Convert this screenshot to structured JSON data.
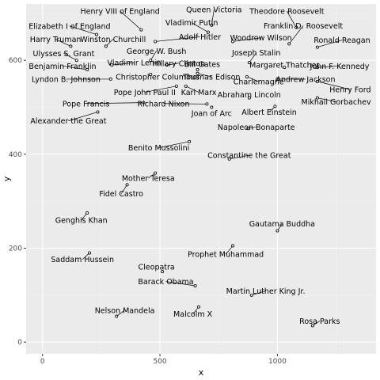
{
  "chart_data": {
    "type": "scatter",
    "title": "",
    "xlabel": "x",
    "ylabel": "y",
    "xlim": [
      -70,
      1420
    ],
    "ylim": [
      -25,
      720
    ],
    "x_ticks": [
      0,
      500,
      1000
    ],
    "y_ticks": [
      0,
      200,
      400,
      600
    ],
    "grid": true,
    "legend": "none",
    "colors": {
      "panel": "#ebebeb",
      "grid_major": "#ffffff",
      "grid_minor": "#f2f2f2",
      "point": "#000000"
    },
    "points": [
      {
        "label": "Henry VIII of England",
        "x": 420,
        "y": 665,
        "lx": 330,
        "ly": 705
      },
      {
        "label": "Queen Victoria",
        "x": 720,
        "y": 675,
        "lx": 730,
        "ly": 708
      },
      {
        "label": "Theodore Roosevelt",
        "x": 1080,
        "y": 670,
        "lx": 1040,
        "ly": 705
      },
      {
        "label": "Vladimir Putin",
        "x": 705,
        "y": 660,
        "lx": 635,
        "ly": 680
      },
      {
        "label": "Elizabeth I of England",
        "x": 230,
        "y": 655,
        "lx": 115,
        "ly": 673
      },
      {
        "label": "Franklin D. Roosevelt",
        "x": 1050,
        "y": 635,
        "lx": 1110,
        "ly": 674
      },
      {
        "label": "Harry Truman",
        "x": 120,
        "y": 630,
        "lx": 55,
        "ly": 645
      },
      {
        "label": "Winston Churchill",
        "x": 270,
        "y": 630,
        "lx": 300,
        "ly": 645
      },
      {
        "label": "Adolf Hitler",
        "x": 480,
        "y": 640,
        "lx": 670,
        "ly": 650
      },
      {
        "label": "Woodrow Wilson",
        "x": 810,
        "y": 640,
        "lx": 930,
        "ly": 648
      },
      {
        "label": "Ronald Reagan",
        "x": 1170,
        "y": 628,
        "lx": 1275,
        "ly": 643
      },
      {
        "label": "George W. Bush",
        "x": 460,
        "y": 600,
        "lx": 485,
        "ly": 620
      },
      {
        "label": "Joseph Stalin",
        "x": 880,
        "y": 595,
        "lx": 910,
        "ly": 616
      },
      {
        "label": "Ulysses S. Grant",
        "x": 145,
        "y": 600,
        "lx": 90,
        "ly": 615
      },
      {
        "label": "Vladimir Lenin",
        "x": 295,
        "y": 590,
        "lx": 390,
        "ly": 595
      },
      {
        "label": "Hillary Clinton",
        "x": 530,
        "y": 590,
        "lx": 580,
        "ly": 594
      },
      {
        "label": "Bill Gates",
        "x": 660,
        "y": 580,
        "lx": 680,
        "ly": 592
      },
      {
        "label": "Margaret Thatcher",
        "x": 1030,
        "y": 585,
        "lx": 1030,
        "ly": 590
      },
      {
        "label": "John F. Kennedy",
        "x": 1170,
        "y": 585,
        "lx": 1265,
        "ly": 588
      },
      {
        "label": "Benjamin Franklin",
        "x": 190,
        "y": 580,
        "lx": 85,
        "ly": 588
      },
      {
        "label": "Christopher Columbus",
        "x": 460,
        "y": 570,
        "lx": 490,
        "ly": 565
      },
      {
        "label": "Thomas Edison",
        "x": 660,
        "y": 572,
        "lx": 720,
        "ly": 565
      },
      {
        "label": "Charlemagne",
        "x": 870,
        "y": 565,
        "lx": 920,
        "ly": 555
      },
      {
        "label": "Andrew Jackson",
        "x": 1000,
        "y": 560,
        "lx": 1120,
        "ly": 560
      },
      {
        "label": "Lyndon B. Johnson",
        "x": 290,
        "y": 560,
        "lx": 100,
        "ly": 560
      },
      {
        "label": "Henry Ford",
        "x": 1170,
        "y": 555,
        "lx": 1310,
        "ly": 538
      },
      {
        "label": "Pope John Paul II",
        "x": 570,
        "y": 545,
        "lx": 435,
        "ly": 532
      },
      {
        "label": "Karl Marx",
        "x": 610,
        "y": 545,
        "lx": 665,
        "ly": 532
      },
      {
        "label": "Abraham Lincoln",
        "x": 880,
        "y": 520,
        "lx": 880,
        "ly": 527
      },
      {
        "label": "Mikhail Gorbachev",
        "x": 1170,
        "y": 520,
        "lx": 1250,
        "ly": 512
      },
      {
        "label": "Pope Francis",
        "x": 430,
        "y": 510,
        "lx": 185,
        "ly": 508
      },
      {
        "label": "Richard Nixon",
        "x": 700,
        "y": 507,
        "lx": 515,
        "ly": 508
      },
      {
        "label": "Albert Einstein",
        "x": 990,
        "y": 502,
        "lx": 965,
        "ly": 490
      },
      {
        "label": "Joan of Arc",
        "x": 720,
        "y": 500,
        "lx": 720,
        "ly": 487
      },
      {
        "label": "Alexander the Great",
        "x": 235,
        "y": 490,
        "lx": 110,
        "ly": 471
      },
      {
        "label": "Napoleon Bonaparte",
        "x": 875,
        "y": 455,
        "lx": 910,
        "ly": 458
      },
      {
        "label": "Benito Mussolini",
        "x": 625,
        "y": 427,
        "lx": 495,
        "ly": 414
      },
      {
        "label": "Constantine the Great",
        "x": 795,
        "y": 390,
        "lx": 880,
        "ly": 398
      },
      {
        "label": "Mother Teresa",
        "x": 480,
        "y": 360,
        "lx": 450,
        "ly": 349
      },
      {
        "label": "Fidel Castro",
        "x": 360,
        "y": 335,
        "lx": 335,
        "ly": 316
      },
      {
        "label": "Genghis Khan",
        "x": 190,
        "y": 275,
        "lx": 165,
        "ly": 260
      },
      {
        "label": "Gautama Buddha",
        "x": 1000,
        "y": 237,
        "lx": 1020,
        "ly": 252
      },
      {
        "label": "Prophet Muhammad",
        "x": 810,
        "y": 205,
        "lx": 780,
        "ly": 187
      },
      {
        "label": "Saddam Hussein",
        "x": 200,
        "y": 190,
        "lx": 170,
        "ly": 176
      },
      {
        "label": "Cleopatra",
        "x": 510,
        "y": 150,
        "lx": 485,
        "ly": 160
      },
      {
        "label": "Barack Obama",
        "x": 650,
        "y": 120,
        "lx": 525,
        "ly": 129
      },
      {
        "label": "Martin Luther King Jr.",
        "x": 890,
        "y": 100,
        "lx": 950,
        "ly": 109
      },
      {
        "label": "Nelson Mandela",
        "x": 315,
        "y": 55,
        "lx": 350,
        "ly": 68
      },
      {
        "label": "Malcolm X",
        "x": 665,
        "y": 75,
        "lx": 640,
        "ly": 60
      },
      {
        "label": "Rosa Parks",
        "x": 1150,
        "y": 35,
        "lx": 1180,
        "ly": 45
      }
    ]
  }
}
